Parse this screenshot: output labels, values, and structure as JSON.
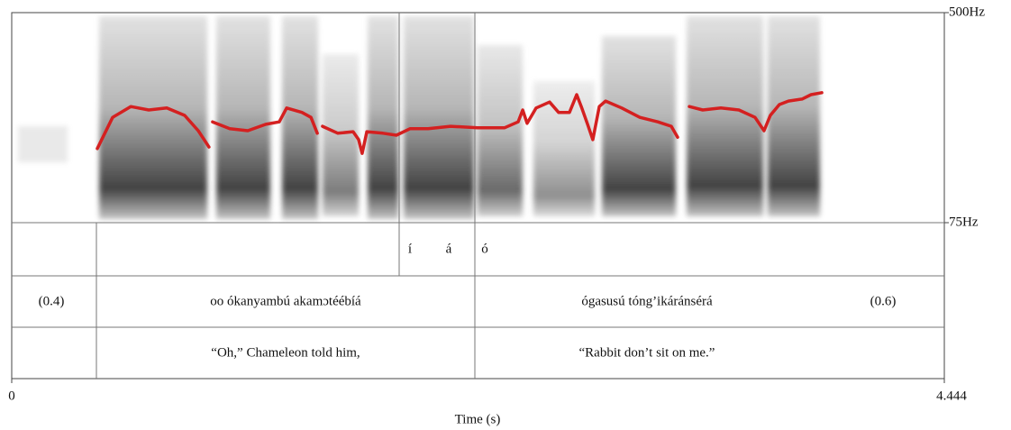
{
  "chart_data": {
    "type": "line",
    "xlabel": "Time (s)",
    "xlim": [
      0,
      4.444
    ],
    "xticks": [
      0,
      4.444
    ],
    "ylim": [
      75,
      500
    ],
    "yticks": [
      {
        "value": 500,
        "label": "500Hz"
      },
      {
        "value": 75,
        "label": "75Hz"
      }
    ],
    "color": "#d42020",
    "x": [
      0.408,
      0.481,
      0.567,
      0.653,
      0.739,
      0.824,
      0.889,
      0.94,
      null,
      0.957,
      1.039,
      1.125,
      1.211,
      1.275,
      1.31,
      1.383,
      1.426,
      1.456,
      null,
      1.481,
      1.554,
      1.627,
      1.653,
      1.67,
      1.692,
      1.769,
      1.833,
      1.898,
      1.984,
      2.091,
      2.22,
      2.349,
      2.413,
      2.435,
      2.456,
      2.499,
      2.563,
      2.606,
      2.658,
      2.692,
      2.714,
      2.744,
      2.769,
      2.8,
      2.83,
      2.907,
      2.993,
      3.079,
      3.143,
      3.173,
      null,
      3.229,
      3.293,
      3.379,
      3.465,
      3.542,
      3.585,
      3.615,
      3.658,
      3.701,
      3.766,
      3.809,
      3.86
    ],
    "values": [
      225,
      288,
      310,
      303,
      307,
      292,
      261,
      228,
      null,
      279,
      265,
      261,
      274,
      279,
      307,
      298,
      288,
      256,
      null,
      270,
      256,
      259,
      243,
      215,
      259,
      256,
      252,
      265,
      265,
      270,
      267,
      267,
      279,
      303,
      276,
      307,
      319,
      298,
      298,
      334,
      310,
      274,
      243,
      310,
      321,
      307,
      288,
      279,
      270,
      248,
      null,
      310,
      303,
      307,
      303,
      288,
      261,
      292,
      314,
      321,
      325,
      334,
      338
    ],
    "text_grid": [
      {
        "labels": [
          "í",
          "á",
          "ó"
        ]
      },
      {
        "labels": [
          "(0.4)",
          "oo ókanyambú akamɔtéébíá",
          "ógasusú tóng’ikáránsérá",
          "(0.6)"
        ]
      },
      {
        "labels": [
          "“Oh,” Chameleon told him,",
          "“Rabbit don’t sit on me.”"
        ]
      }
    ]
  }
}
